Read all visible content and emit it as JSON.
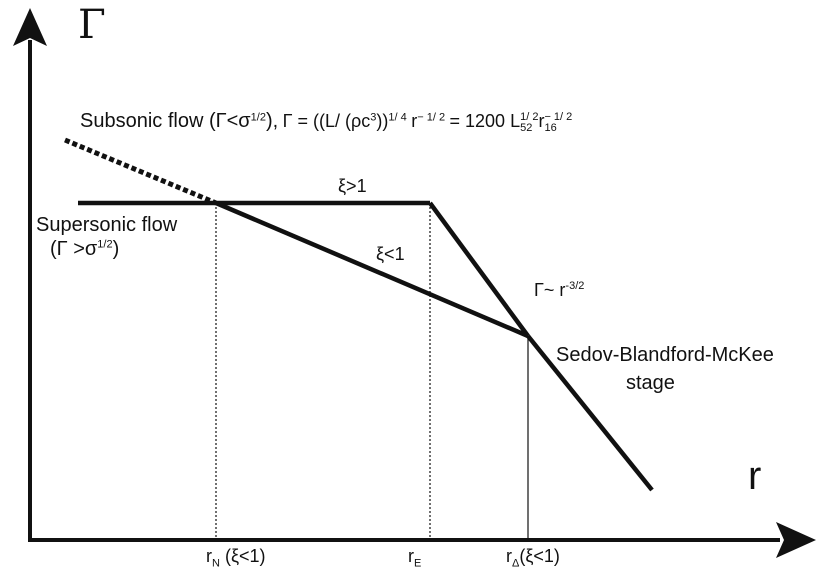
{
  "axes": {
    "y_label": "Γ",
    "x_label": "r"
  },
  "annotations": {
    "subsonic_label": "Subsonic flow (Γ<σ",
    "subsonic_sup": "1/2",
    "subsonic_close": "),",
    "equation": "Γ = ((L/ (ρc",
    "equation_sup1": "3",
    "equation_mid": "))",
    "equation_sup2": "1/ 4",
    "equation_r": "r",
    "equation_sup3": "− 1/ 2",
    "equation_rhs": "= 1200 L",
    "equation_L_sub": "52",
    "equation_L_sup": "1/ 2",
    "equation_r2": "r",
    "equation_r_sub": "16",
    "equation_r_sup": "− 1/ 2",
    "supersonic_line1": "Supersonic flow",
    "supersonic_line2": "(Γ >σ",
    "supersonic_sup": "1/2",
    "supersonic_close": ")",
    "xi_gt": "ξ>1",
    "xi_lt": "ξ<1",
    "gamma_scaling": "Γ~ r",
    "gamma_scaling_sup": "-3/2",
    "sedov_line1": "Sedov-Blandford-McKee",
    "sedov_line2": "stage"
  },
  "ticks": {
    "rN": "r",
    "rN_sub": "N",
    "rN_note": "(ξ<1)",
    "rE": "r",
    "rE_sub": "E",
    "rDelta": "r",
    "rDelta_sub": "Δ",
    "rDelta_note": "(ξ<1)"
  }
}
